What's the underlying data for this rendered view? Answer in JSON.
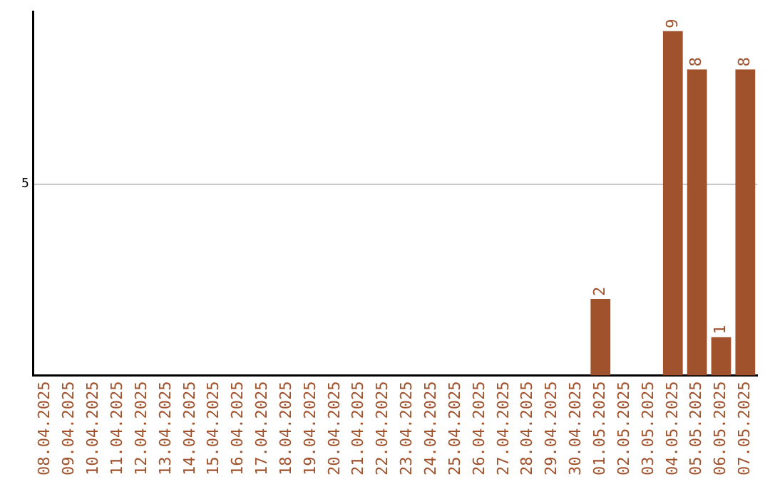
{
  "chart_data": {
    "type": "bar",
    "categories": [
      "08.04.2025",
      "09.04.2025",
      "10.04.2025",
      "11.04.2025",
      "12.04.2025",
      "13.04.2025",
      "14.04.2025",
      "15.04.2025",
      "16.04.2025",
      "17.04.2025",
      "18.04.2025",
      "19.04.2025",
      "20.04.2025",
      "21.04.2025",
      "22.04.2025",
      "23.04.2025",
      "24.04.2025",
      "25.04.2025",
      "26.04.2025",
      "27.04.2025",
      "28.04.2025",
      "29.04.2025",
      "30.04.2025",
      "01.05.2025",
      "02.05.2025",
      "03.05.2025",
      "04.05.2025",
      "05.05.2025",
      "06.05.2025",
      "07.05.2025"
    ],
    "values": [
      null,
      null,
      null,
      null,
      null,
      null,
      null,
      null,
      null,
      null,
      null,
      null,
      null,
      null,
      null,
      null,
      null,
      null,
      null,
      null,
      null,
      null,
      null,
      2,
      null,
      null,
      9,
      8,
      1,
      8
    ],
    "data_labels": true,
    "color": "#a0522d",
    "ylim": [
      0,
      9.5
    ],
    "yticks": [
      5
    ],
    "grid": "y",
    "legend": false
  }
}
